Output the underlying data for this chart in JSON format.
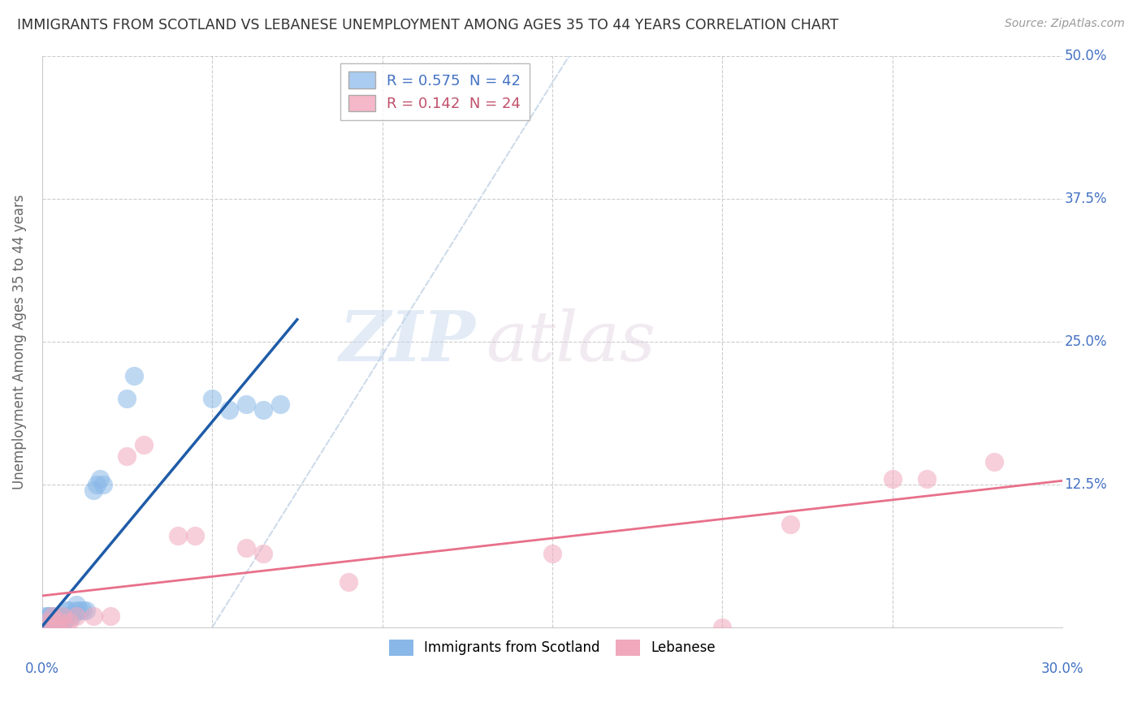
{
  "title": "IMMIGRANTS FROM SCOTLAND VS LEBANESE UNEMPLOYMENT AMONG AGES 35 TO 44 YEARS CORRELATION CHART",
  "source": "Source: ZipAtlas.com",
  "ylabel": "Unemployment Among Ages 35 to 44 years",
  "xlim": [
    0.0,
    0.3
  ],
  "ylim": [
    0.0,
    0.5
  ],
  "xticks": [
    0.0,
    0.05,
    0.1,
    0.15,
    0.2,
    0.25,
    0.3
  ],
  "yticks": [
    0.0,
    0.125,
    0.25,
    0.375,
    0.5
  ],
  "watermark_zip": "ZIP",
  "watermark_atlas": "atlas",
  "scotland_color": "#89b8e8",
  "lebanon_color": "#f0a8bc",
  "trendline_scotland_color": "#1f5ca8",
  "trendline_lebanon_color": "#e8708a",
  "diag_color": "#c8d8e8",
  "scotland_points": [
    [
      0.0005,
      0.0
    ],
    [
      0.001,
      0.0
    ],
    [
      0.001,
      0.005
    ],
    [
      0.001,
      0.01
    ],
    [
      0.002,
      0.0
    ],
    [
      0.002,
      0.005
    ],
    [
      0.002,
      0.01
    ],
    [
      0.002,
      0.01
    ],
    [
      0.003,
      0.0
    ],
    [
      0.003,
      0.005
    ],
    [
      0.003,
      0.01
    ],
    [
      0.004,
      0.0
    ],
    [
      0.004,
      0.005
    ],
    [
      0.004,
      0.01
    ],
    [
      0.005,
      0.0
    ],
    [
      0.005,
      0.005
    ],
    [
      0.006,
      0.005
    ],
    [
      0.006,
      0.01
    ],
    [
      0.007,
      0.01
    ],
    [
      0.007,
      0.015
    ],
    [
      0.008,
      0.01
    ],
    [
      0.008,
      0.015
    ],
    [
      0.009,
      0.01
    ],
    [
      0.01,
      0.015
    ],
    [
      0.01,
      0.02
    ],
    [
      0.011,
      0.015
    ],
    [
      0.012,
      0.015
    ],
    [
      0.013,
      0.015
    ],
    [
      0.015,
      0.12
    ],
    [
      0.016,
      0.125
    ],
    [
      0.017,
      0.13
    ],
    [
      0.018,
      0.125
    ],
    [
      0.025,
      0.2
    ],
    [
      0.027,
      0.22
    ],
    [
      0.05,
      0.2
    ],
    [
      0.055,
      0.19
    ],
    [
      0.06,
      0.195
    ],
    [
      0.065,
      0.19
    ],
    [
      0.07,
      0.195
    ],
    [
      0.005,
      0.0
    ],
    [
      0.003,
      0.0
    ],
    [
      0.006,
      0.0
    ]
  ],
  "lebanon_points": [
    [
      0.001,
      0.0
    ],
    [
      0.002,
      0.005
    ],
    [
      0.003,
      0.01
    ],
    [
      0.004,
      0.0
    ],
    [
      0.005,
      0.005
    ],
    [
      0.006,
      0.01
    ],
    [
      0.007,
      0.0
    ],
    [
      0.008,
      0.005
    ],
    [
      0.01,
      0.01
    ],
    [
      0.015,
      0.01
    ],
    [
      0.02,
      0.01
    ],
    [
      0.025,
      0.15
    ],
    [
      0.03,
      0.16
    ],
    [
      0.04,
      0.08
    ],
    [
      0.045,
      0.08
    ],
    [
      0.06,
      0.07
    ],
    [
      0.065,
      0.065
    ],
    [
      0.09,
      0.04
    ],
    [
      0.15,
      0.065
    ],
    [
      0.2,
      0.0
    ],
    [
      0.22,
      0.09
    ],
    [
      0.25,
      0.13
    ],
    [
      0.26,
      0.13
    ],
    [
      0.28,
      0.145
    ]
  ],
  "legend_sc_label": "R = 0.575  N = 42",
  "legend_lb_label": "R = 0.142  N = 24",
  "legend_sc_color": "#aaccf0",
  "legend_lb_color": "#f5b8c8",
  "bottom_legend_sc": "Immigrants from Scotland",
  "bottom_legend_lb": "Lebanese"
}
